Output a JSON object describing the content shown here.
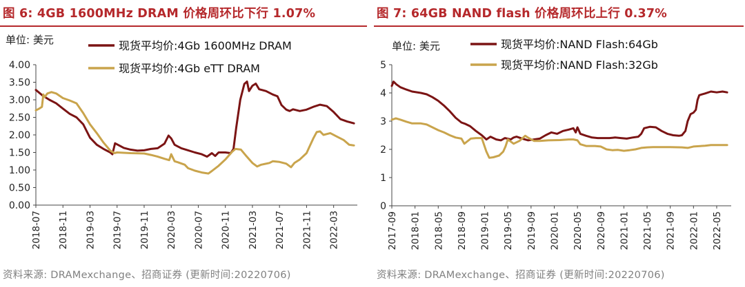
{
  "chart_data": [
    {
      "type": "line",
      "title": "图 6:  4GB 1600MHz DRAM 价格周环比下行 1.07%",
      "unit_label": "单位:  美元",
      "ylim": [
        0,
        4
      ],
      "yticks": [
        "0.00",
        "0.50",
        "1.00",
        "1.50",
        "2.00",
        "2.50",
        "3.00",
        "3.50",
        "4.00"
      ],
      "xlim": [
        0,
        47.5
      ],
      "xticks": [
        {
          "pos": 0,
          "label": "2018-07"
        },
        {
          "pos": 4,
          "label": "2018-11"
        },
        {
          "pos": 8,
          "label": "2019-03"
        },
        {
          "pos": 12,
          "label": "2019-07"
        },
        {
          "pos": 16,
          "label": "2019-11"
        },
        {
          "pos": 20,
          "label": "2020-03"
        },
        {
          "pos": 24,
          "label": "2020-07"
        },
        {
          "pos": 28,
          "label": "2020-11"
        },
        {
          "pos": 32,
          "label": "2021-03"
        },
        {
          "pos": 36,
          "label": "2021-07"
        },
        {
          "pos": 40,
          "label": "2021-11"
        },
        {
          "pos": 44,
          "label": "2022-03"
        }
      ],
      "series": [
        {
          "name": "现货平均价:4Gb 1600MHz DRAM",
          "color": "#7b1414",
          "points": [
            [
              0,
              3.28
            ],
            [
              1,
              3.12
            ],
            [
              2,
              3.0
            ],
            [
              3,
              2.9
            ],
            [
              4,
              2.75
            ],
            [
              5,
              2.6
            ],
            [
              6,
              2.5
            ],
            [
              7,
              2.3
            ],
            [
              8,
              1.92
            ],
            [
              9,
              1.72
            ],
            [
              10,
              1.6
            ],
            [
              11,
              1.5
            ],
            [
              11.3,
              1.45
            ],
            [
              11.7,
              1.76
            ],
            [
              12.5,
              1.68
            ],
            [
              13,
              1.63
            ],
            [
              14,
              1.58
            ],
            [
              15,
              1.55
            ],
            [
              16,
              1.56
            ],
            [
              17,
              1.6
            ],
            [
              18,
              1.62
            ],
            [
              19,
              1.75
            ],
            [
              19.6,
              1.98
            ],
            [
              20,
              1.9
            ],
            [
              20.5,
              1.72
            ],
            [
              21.5,
              1.62
            ],
            [
              22.5,
              1.56
            ],
            [
              23.5,
              1.5
            ],
            [
              24.5,
              1.45
            ],
            [
              25.3,
              1.38
            ],
            [
              26,
              1.48
            ],
            [
              26.5,
              1.4
            ],
            [
              27,
              1.5
            ],
            [
              28,
              1.5
            ],
            [
              28.8,
              1.48
            ],
            [
              29.2,
              1.6
            ],
            [
              29.6,
              2.2
            ],
            [
              30.2,
              3.0
            ],
            [
              30.8,
              3.45
            ],
            [
              31.2,
              3.52
            ],
            [
              31.5,
              3.25
            ],
            [
              32,
              3.4
            ],
            [
              32.5,
              3.46
            ],
            [
              33,
              3.3
            ],
            [
              34,
              3.25
            ],
            [
              35,
              3.15
            ],
            [
              35.7,
              3.1
            ],
            [
              36.3,
              2.85
            ],
            [
              37,
              2.72
            ],
            [
              37.5,
              2.68
            ],
            [
              38,
              2.73
            ],
            [
              39,
              2.68
            ],
            [
              40,
              2.72
            ],
            [
              41,
              2.8
            ],
            [
              42,
              2.86
            ],
            [
              43,
              2.82
            ],
            [
              44,
              2.65
            ],
            [
              45,
              2.45
            ],
            [
              46,
              2.38
            ],
            [
              47,
              2.33
            ]
          ]
        },
        {
          "name": "现货平均价:4Gb eTT DRAM",
          "color": "#c9a44c",
          "points": [
            [
              0,
              2.7
            ],
            [
              0.5,
              2.75
            ],
            [
              0.9,
              2.8
            ],
            [
              1.1,
              3.15
            ],
            [
              1.3,
              3.08
            ],
            [
              1.7,
              3.18
            ],
            [
              2.3,
              3.22
            ],
            [
              3,
              3.18
            ],
            [
              4,
              3.05
            ],
            [
              5,
              2.98
            ],
            [
              6,
              2.9
            ],
            [
              7,
              2.62
            ],
            [
              8,
              2.3
            ],
            [
              9,
              2.05
            ],
            [
              10,
              1.78
            ],
            [
              11,
              1.55
            ],
            [
              11.6,
              1.48
            ],
            [
              12,
              1.5
            ],
            [
              14,
              1.48
            ],
            [
              16,
              1.47
            ],
            [
              17,
              1.43
            ],
            [
              18,
              1.38
            ],
            [
              19,
              1.32
            ],
            [
              19.7,
              1.28
            ],
            [
              20,
              1.45
            ],
            [
              20.5,
              1.25
            ],
            [
              21,
              1.22
            ],
            [
              22,
              1.15
            ],
            [
              22.5,
              1.05
            ],
            [
              23.5,
              0.98
            ],
            [
              24.5,
              0.93
            ],
            [
              25.5,
              0.9
            ],
            [
              26,
              0.97
            ],
            [
              27,
              1.12
            ],
            [
              28,
              1.3
            ],
            [
              29,
              1.52
            ],
            [
              29.5,
              1.6
            ],
            [
              30.3,
              1.58
            ],
            [
              31,
              1.42
            ],
            [
              32,
              1.2
            ],
            [
              32.7,
              1.1
            ],
            [
              33.3,
              1.15
            ],
            [
              34.5,
              1.2
            ],
            [
              35,
              1.25
            ],
            [
              36,
              1.23
            ],
            [
              37,
              1.18
            ],
            [
              37.7,
              1.08
            ],
            [
              38.2,
              1.2
            ],
            [
              39,
              1.3
            ],
            [
              40,
              1.48
            ],
            [
              40.4,
              1.65
            ],
            [
              41,
              1.9
            ],
            [
              41.5,
              2.08
            ],
            [
              42,
              2.1
            ],
            [
              42.5,
              2.0
            ],
            [
              43.5,
              2.05
            ],
            [
              44.5,
              1.95
            ],
            [
              45.5,
              1.85
            ],
            [
              46.3,
              1.72
            ],
            [
              47,
              1.7
            ]
          ]
        }
      ]
    },
    {
      "type": "line",
      "title": "图 7:  64GB NAND flash 价格周环比上行 0.37%",
      "unit_label": "单位:  美元",
      "ylim": [
        0,
        5
      ],
      "yticks": [
        "0",
        "1",
        "2",
        "3",
        "4",
        "5"
      ],
      "xlim": [
        0,
        58.5
      ],
      "xticks": [
        {
          "pos": 0,
          "label": "2017-09"
        },
        {
          "pos": 4,
          "label": "2018-01"
        },
        {
          "pos": 8,
          "label": "2018-05"
        },
        {
          "pos": 12,
          "label": "2018-09"
        },
        {
          "pos": 16,
          "label": "2019-01"
        },
        {
          "pos": 20,
          "label": "2019-05"
        },
        {
          "pos": 24,
          "label": "2019-09"
        },
        {
          "pos": 28,
          "label": "2020-01"
        },
        {
          "pos": 32,
          "label": "2020-05"
        },
        {
          "pos": 36,
          "label": "2020-09"
        },
        {
          "pos": 40,
          "label": "2021-01"
        },
        {
          "pos": 44,
          "label": "2021-05"
        },
        {
          "pos": 48,
          "label": "2021-09"
        },
        {
          "pos": 52,
          "label": "2022-01"
        },
        {
          "pos": 56,
          "label": "2022-05"
        }
      ],
      "series": [
        {
          "name": "现货平均价:NAND Flash:64Gb",
          "color": "#7b1414",
          "points": [
            [
              0,
              4.25
            ],
            [
              0.3,
              4.4
            ],
            [
              0.8,
              4.3
            ],
            [
              1.5,
              4.2
            ],
            [
              2.5,
              4.12
            ],
            [
              3.5,
              4.05
            ],
            [
              5,
              4.0
            ],
            [
              6,
              3.95
            ],
            [
              7,
              3.85
            ],
            [
              8,
              3.72
            ],
            [
              9,
              3.55
            ],
            [
              10,
              3.35
            ],
            [
              11,
              3.12
            ],
            [
              12,
              2.95
            ],
            [
              12.7,
              2.9
            ],
            [
              13.5,
              2.82
            ],
            [
              14.5,
              2.65
            ],
            [
              15.5,
              2.5
            ],
            [
              16.3,
              2.35
            ],
            [
              17,
              2.45
            ],
            [
              18,
              2.35
            ],
            [
              18.8,
              2.32
            ],
            [
              19.5,
              2.4
            ],
            [
              20.5,
              2.35
            ],
            [
              21,
              2.42
            ],
            [
              21.5,
              2.45
            ],
            [
              22.5,
              2.38
            ],
            [
              23.5,
              2.32
            ],
            [
              24.5,
              2.35
            ],
            [
              25.5,
              2.38
            ],
            [
              26.5,
              2.5
            ],
            [
              27.5,
              2.6
            ],
            [
              28.5,
              2.55
            ],
            [
              29.5,
              2.65
            ],
            [
              30.5,
              2.7
            ],
            [
              31.3,
              2.75
            ],
            [
              31.7,
              2.6
            ],
            [
              32,
              2.78
            ],
            [
              32.5,
              2.55
            ],
            [
              33.5,
              2.48
            ],
            [
              34.5,
              2.42
            ],
            [
              35.5,
              2.4
            ],
            [
              36.5,
              2.4
            ],
            [
              37.5,
              2.4
            ],
            [
              38.5,
              2.42
            ],
            [
              39.5,
              2.4
            ],
            [
              40.5,
              2.38
            ],
            [
              41.5,
              2.42
            ],
            [
              42.5,
              2.45
            ],
            [
              43,
              2.55
            ],
            [
              43.5,
              2.75
            ],
            [
              44.5,
              2.8
            ],
            [
              45.5,
              2.78
            ],
            [
              46.5,
              2.65
            ],
            [
              47.5,
              2.55
            ],
            [
              48.5,
              2.5
            ],
            [
              49.5,
              2.48
            ],
            [
              50,
              2.5
            ],
            [
              50.6,
              2.65
            ],
            [
              51,
              3.0
            ],
            [
              51.5,
              3.25
            ],
            [
              52,
              3.3
            ],
            [
              52.4,
              3.4
            ],
            [
              52.7,
              3.75
            ],
            [
              53,
              3.92
            ],
            [
              54,
              3.98
            ],
            [
              55,
              4.05
            ],
            [
              56,
              4.02
            ],
            [
              57,
              4.05
            ],
            [
              57.8,
              4.02
            ]
          ]
        },
        {
          "name": "现货平均价:NAND Flash:32Gb",
          "color": "#c9a44c",
          "points": [
            [
              0,
              3.05
            ],
            [
              0.7,
              3.1
            ],
            [
              1.5,
              3.05
            ],
            [
              2.5,
              2.98
            ],
            [
              3.5,
              2.92
            ],
            [
              5,
              2.92
            ],
            [
              6,
              2.88
            ],
            [
              7,
              2.78
            ],
            [
              8,
              2.68
            ],
            [
              9,
              2.6
            ],
            [
              10,
              2.5
            ],
            [
              11,
              2.42
            ],
            [
              12,
              2.38
            ],
            [
              12.5,
              2.2
            ],
            [
              13,
              2.28
            ],
            [
              13.6,
              2.38
            ],
            [
              14.5,
              2.4
            ],
            [
              15.5,
              2.4
            ],
            [
              16.3,
              1.92
            ],
            [
              16.8,
              1.7
            ],
            [
              17.5,
              1.72
            ],
            [
              18.5,
              1.78
            ],
            [
              19.2,
              1.92
            ],
            [
              19.6,
              2.1
            ],
            [
              20,
              2.35
            ],
            [
              21,
              2.2
            ],
            [
              22,
              2.3
            ],
            [
              23,
              2.48
            ],
            [
              23.6,
              2.4
            ],
            [
              24.5,
              2.3
            ],
            [
              25.5,
              2.3
            ],
            [
              27,
              2.32
            ],
            [
              29,
              2.33
            ],
            [
              30.5,
              2.35
            ],
            [
              31.3,
              2.35
            ],
            [
              32,
              2.32
            ],
            [
              32.5,
              2.18
            ],
            [
              33.5,
              2.12
            ],
            [
              35,
              2.12
            ],
            [
              36,
              2.1
            ],
            [
              37,
              2.0
            ],
            [
              38,
              1.97
            ],
            [
              39,
              1.98
            ],
            [
              40,
              1.95
            ],
            [
              41,
              1.97
            ],
            [
              42,
              2.0
            ],
            [
              43,
              2.05
            ],
            [
              44,
              2.07
            ],
            [
              45,
              2.08
            ],
            [
              46,
              2.08
            ],
            [
              48,
              2.08
            ],
            [
              50,
              2.07
            ],
            [
              51,
              2.05
            ],
            [
              52,
              2.1
            ],
            [
              54,
              2.13
            ],
            [
              55,
              2.15
            ],
            [
              56,
              2.15
            ],
            [
              57,
              2.15
            ],
            [
              57.8,
              2.15
            ]
          ]
        }
      ]
    }
  ],
  "footnote_left": "资料来源:  DRAMexchange、招商证券  (更新时间:20220706)",
  "footnote_right": "资料来源:  DRAMexchange、招商证券  (更新时间:20220706)"
}
